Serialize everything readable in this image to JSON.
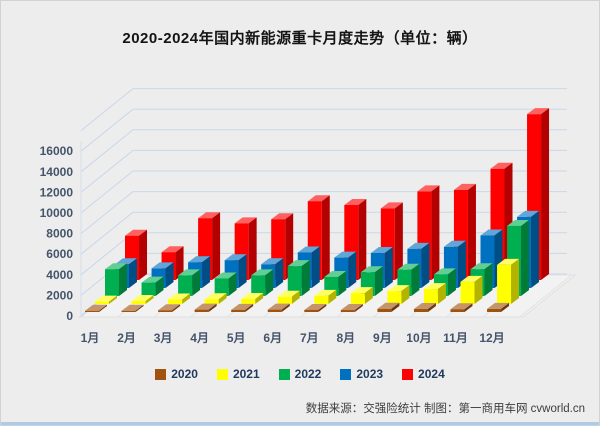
{
  "page": {
    "title": "2020-2024年国内新能源重卡月度走势（单位：辆）",
    "footer": "数据来源：交强险统计 制图：第一商用车网 cvworld.cn"
  },
  "colors": {
    "background": "#EDEDED",
    "gridline": "#C9D7EA",
    "axis_text": "#44546A",
    "legend_text": "#223A5E",
    "footer_text": "#3D3D3D",
    "floor": "#F2F2F2",
    "bottom_strip": "#AACBE9"
  },
  "chart_data": {
    "type": "bar",
    "projection": "3d-column",
    "title": "2020-2024年国内新能源重卡月度走势（单位：辆）",
    "unit": "辆",
    "xlabel": "",
    "ylabel": "",
    "grid": true,
    "legend_position": "bottom",
    "categories": [
      "1月",
      "2月",
      "3月",
      "4月",
      "5月",
      "6月",
      "7月",
      "8月",
      "9月",
      "10月",
      "11月",
      "12月"
    ],
    "y_axis": {
      "min": 0,
      "max": 18000,
      "tick_step": 2000,
      "tick_labels": [
        "0",
        "2000",
        "4000",
        "6000",
        "8000",
        "10000",
        "12000",
        "14000",
        "16000"
      ]
    },
    "series": [
      {
        "name": "2020",
        "color": "#A0520F",
        "values": [
          90,
          95,
          170,
          230,
          210,
          230,
          200,
          190,
          310,
          290,
          270,
          300
        ]
      },
      {
        "name": "2021",
        "color": "#FFFF00",
        "values": [
          230,
          290,
          440,
          460,
          480,
          700,
          790,
          1050,
          1250,
          1450,
          2150,
          3800
        ]
      },
      {
        "name": "2022",
        "color": "#00B050",
        "values": [
          2600,
          1300,
          2000,
          1700,
          2000,
          2900,
          1850,
          2300,
          2550,
          2100,
          2600,
          6800
        ]
      },
      {
        "name": "2023",
        "color": "#0070C0",
        "values": [
          2300,
          1900,
          2500,
          2700,
          2300,
          3450,
          2950,
          3400,
          3800,
          4000,
          5100,
          6900
        ]
      },
      {
        "name": "2024",
        "color": "#FF0000",
        "values": [
          4300,
          2700,
          6000,
          5500,
          5900,
          7650,
          7280,
          6950,
          8600,
          8750,
          10800,
          16100
        ]
      }
    ]
  }
}
